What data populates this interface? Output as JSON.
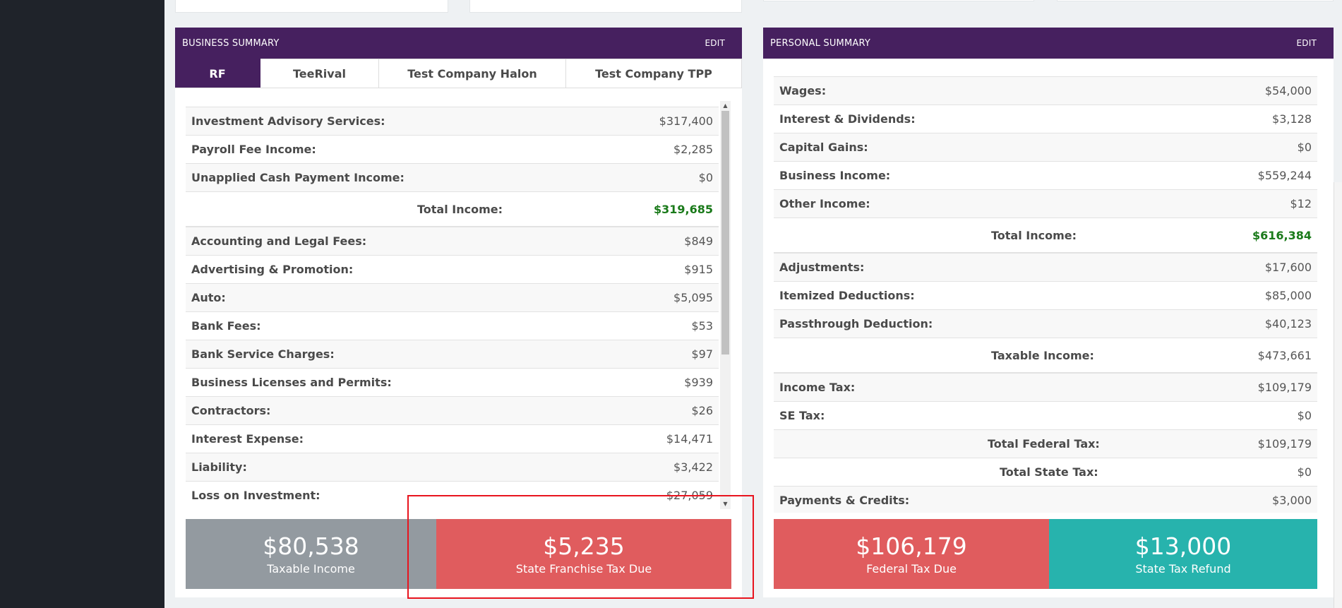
{
  "business": {
    "header_title": "BUSINESS SUMMARY",
    "edit_label": "EDIT",
    "tabs": [
      {
        "label": "RF"
      },
      {
        "label": "TeeRival"
      },
      {
        "label": "Test Company Halon"
      },
      {
        "label": "Test Company TPP"
      }
    ],
    "income_rows": [
      {
        "label": "Investment Advisory Services:",
        "value": "$317,400"
      },
      {
        "label": "Payroll Fee Income:",
        "value": "$2,285"
      },
      {
        "label": "Unapplied Cash Payment Income:",
        "value": "$0"
      }
    ],
    "total_income": {
      "label": "Total Income:",
      "value": "$319,685"
    },
    "expense_rows": [
      {
        "label": "Accounting and Legal Fees:",
        "value": "$849"
      },
      {
        "label": "Advertising & Promotion:",
        "value": "$915"
      },
      {
        "label": "Auto:",
        "value": "$5,095"
      },
      {
        "label": "Bank Fees:",
        "value": "$53"
      },
      {
        "label": "Bank Service Charges:",
        "value": "$97"
      },
      {
        "label": "Business Licenses and Permits:",
        "value": "$939"
      },
      {
        "label": "Contractors:",
        "value": "$26"
      },
      {
        "label": "Interest Expense:",
        "value": "$14,471"
      },
      {
        "label": "Liability:",
        "value": "$3,422"
      },
      {
        "label": "Loss on Investment:",
        "value": "$27,059"
      }
    ],
    "stats": [
      {
        "value": "$80,538",
        "label": "Taxable Income"
      },
      {
        "value": "$5,235",
        "label": "State Franchise Tax Due"
      }
    ]
  },
  "personal": {
    "header_title": "PERSONAL SUMMARY",
    "edit_label": "EDIT",
    "income_rows": [
      {
        "label": "Wages:",
        "value": "$54,000"
      },
      {
        "label": "Interest & Dividends:",
        "value": "$3,128"
      },
      {
        "label": "Capital Gains:",
        "value": "$0"
      },
      {
        "label": "Business Income:",
        "value": "$559,244"
      },
      {
        "label": "Other Income:",
        "value": "$12"
      }
    ],
    "total_income": {
      "label": "Total Income:",
      "value": "$616,384"
    },
    "deduction_rows": [
      {
        "label": "Adjustments:",
        "value": "$17,600"
      },
      {
        "label": "Itemized Deductions:",
        "value": "$85,000"
      },
      {
        "label": "Passthrough Deduction:",
        "value": "$40,123"
      }
    ],
    "taxable_income": {
      "label": "Taxable Income:",
      "value": "$473,661"
    },
    "tax_rows": [
      {
        "label": "Income Tax:",
        "value": "$109,179"
      },
      {
        "label": "SE Tax:",
        "value": "$0"
      }
    ],
    "total_federal": {
      "label": "Total Federal Tax:",
      "value": "$109,179"
    },
    "total_state": {
      "label": "Total State Tax:",
      "value": "$0"
    },
    "payments": {
      "label": "Payments & Credits:",
      "value": "$3,000"
    },
    "stats": [
      {
        "value": "$106,179",
        "label": "Federal Tax Due"
      },
      {
        "value": "$13,000",
        "label": "State Tax Refund"
      }
    ]
  }
}
